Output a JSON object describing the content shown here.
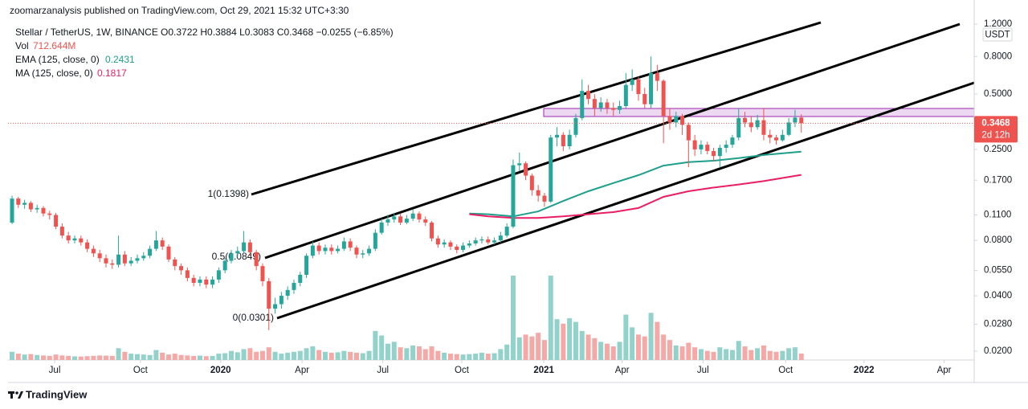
{
  "chart_data": {
    "type": "candlestick",
    "header": {
      "publisher": "zoomarzanalysis published on TradingView.com, Oct 29, 2021 15:32 UTC+3:30",
      "symbol": "Stellar / TetherUS, 1W, BINANCE",
      "ohlc": "O0.3722 H0.3884 L0.3083 C0.3468 −0.0255 (−6.85%)"
    },
    "currency": "USDT",
    "countdown": "2d 12h",
    "footer": "TradingView",
    "log_scale": true,
    "ylim": [
      0.0179,
      1.467
    ],
    "yticks": [
      {
        "value": 1.2,
        "label": "1.2000"
      },
      {
        "value": 0.8,
        "label": "0.8000"
      },
      {
        "value": 0.5,
        "label": "0.5000"
      },
      {
        "value": 0.25,
        "label": "0.2500"
      },
      {
        "value": 0.17,
        "label": "0.1700"
      },
      {
        "value": 0.11,
        "label": "0.1100"
      },
      {
        "value": 0.08,
        "label": "0.0800"
      },
      {
        "value": 0.055,
        "label": "0.0550"
      },
      {
        "value": 0.04,
        "label": "0.0400"
      },
      {
        "value": 0.028,
        "label": "0.0280"
      },
      {
        "value": 0.02,
        "label": "0.0200"
      }
    ],
    "xlim": [
      -0.64,
      153.6
    ],
    "xticks": [
      {
        "value": 6.8,
        "label": "Jul"
      },
      {
        "value": 20.5,
        "label": "Oct"
      },
      {
        "value": 33.3,
        "label": "2020"
      },
      {
        "value": 46.3,
        "label": "Apr"
      },
      {
        "value": 59.2,
        "label": "Jul"
      },
      {
        "value": 71.8,
        "label": "Oct"
      },
      {
        "value": 84.9,
        "label": "2021"
      },
      {
        "value": 97.4,
        "label": "Apr"
      },
      {
        "value": 110.3,
        "label": "Jul"
      },
      {
        "value": 123.5,
        "label": "Oct"
      },
      {
        "value": 136,
        "label": "2022"
      },
      {
        "value": 148.8,
        "label": "Apr"
      }
    ],
    "series": [
      {
        "name": "Stellar / TetherUS",
        "type": "candlestick",
        "up_color": "#26a69a",
        "down_color": "#ef5350",
        "open": [
          0.1,
          0.135,
          0.125,
          0.128,
          0.118,
          0.12,
          0.112,
          0.11,
          0.095,
          0.085,
          0.08,
          0.082,
          0.078,
          0.072,
          0.068,
          0.064,
          0.06,
          0.059,
          0.067,
          0.06,
          0.062,
          0.064,
          0.066,
          0.072,
          0.08,
          0.074,
          0.063,
          0.058,
          0.055,
          0.05,
          0.047,
          0.049,
          0.046,
          0.049,
          0.055,
          0.062,
          0.068,
          0.07,
          0.078,
          0.069,
          0.058,
          0.048,
          0.034,
          0.036,
          0.04,
          0.043,
          0.047,
          0.052,
          0.066,
          0.075,
          0.07,
          0.073,
          0.07,
          0.072,
          0.079,
          0.073,
          0.067,
          0.068,
          0.072,
          0.088,
          0.1,
          0.104,
          0.108,
          0.1,
          0.105,
          0.112,
          0.104,
          0.1,
          0.082,
          0.076,
          0.078,
          0.074,
          0.071,
          0.075,
          0.077,
          0.08,
          0.081,
          0.078,
          0.08,
          0.085,
          0.095,
          0.205,
          0.21,
          0.18,
          0.15,
          0.14,
          0.13,
          0.29,
          0.3,
          0.26,
          0.3,
          0.37,
          0.52,
          0.47,
          0.42,
          0.45,
          0.42,
          0.41,
          0.43,
          0.56,
          0.6,
          0.5,
          0.44,
          0.65,
          0.59,
          0.38,
          0.35,
          0.38,
          0.34,
          0.28,
          0.25,
          0.265,
          0.245,
          0.23,
          0.255,
          0.265,
          0.29,
          0.37,
          0.35,
          0.33,
          0.36,
          0.3,
          0.29,
          0.28,
          0.3,
          0.35,
          0.3722
        ],
        "high": [
          0.14,
          0.138,
          0.133,
          0.131,
          0.125,
          0.123,
          0.116,
          0.113,
          0.099,
          0.089,
          0.085,
          0.085,
          0.081,
          0.075,
          0.071,
          0.067,
          0.063,
          0.085,
          0.07,
          0.065,
          0.067,
          0.069,
          0.075,
          0.09,
          0.083,
          0.076,
          0.065,
          0.06,
          0.057,
          0.052,
          0.051,
          0.051,
          0.051,
          0.057,
          0.064,
          0.071,
          0.074,
          0.09,
          0.081,
          0.071,
          0.06,
          0.05,
          0.039,
          0.042,
          0.045,
          0.049,
          0.054,
          0.068,
          0.079,
          0.078,
          0.076,
          0.076,
          0.075,
          0.083,
          0.082,
          0.075,
          0.071,
          0.075,
          0.092,
          0.105,
          0.11,
          0.113,
          0.112,
          0.11,
          0.118,
          0.115,
          0.108,
          0.102,
          0.085,
          0.081,
          0.08,
          0.076,
          0.078,
          0.08,
          0.083,
          0.084,
          0.084,
          0.083,
          0.089,
          0.099,
          0.22,
          0.24,
          0.215,
          0.185,
          0.16,
          0.145,
          0.3,
          0.33,
          0.31,
          0.32,
          0.39,
          0.6,
          0.56,
          0.5,
          0.48,
          0.47,
          0.45,
          0.46,
          0.65,
          0.68,
          0.62,
          0.54,
          0.8,
          0.72,
          0.6,
          0.42,
          0.4,
          0.39,
          0.35,
          0.3,
          0.28,
          0.275,
          0.255,
          0.265,
          0.28,
          0.3,
          0.42,
          0.4,
          0.38,
          0.385,
          0.42,
          0.32,
          0.3,
          0.32,
          0.37,
          0.41,
          0.3884
        ],
        "low": [
          0.098,
          0.12,
          0.119,
          0.114,
          0.113,
          0.108,
          0.104,
          0.092,
          0.082,
          0.077,
          0.077,
          0.075,
          0.069,
          0.065,
          0.061,
          0.057,
          0.056,
          0.057,
          0.058,
          0.058,
          0.06,
          0.062,
          0.064,
          0.07,
          0.071,
          0.061,
          0.055,
          0.052,
          0.048,
          0.045,
          0.045,
          0.044,
          0.044,
          0.047,
          0.053,
          0.06,
          0.065,
          0.068,
          0.066,
          0.055,
          0.045,
          0.026,
          0.032,
          0.034,
          0.038,
          0.041,
          0.045,
          0.05,
          0.064,
          0.067,
          0.067,
          0.067,
          0.068,
          0.07,
          0.07,
          0.064,
          0.064,
          0.066,
          0.07,
          0.086,
          0.096,
          0.1,
          0.097,
          0.098,
          0.102,
          0.1,
          0.096,
          0.079,
          0.073,
          0.073,
          0.071,
          0.068,
          0.069,
          0.073,
          0.075,
          0.077,
          0.076,
          0.076,
          0.078,
          0.083,
          0.093,
          0.19,
          0.17,
          0.14,
          0.13,
          0.122,
          0.128,
          0.26,
          0.245,
          0.25,
          0.29,
          0.36,
          0.44,
          0.38,
          0.4,
          0.39,
          0.38,
          0.39,
          0.42,
          0.52,
          0.46,
          0.42,
          0.42,
          0.52,
          0.27,
          0.32,
          0.33,
          0.3,
          0.2,
          0.23,
          0.235,
          0.235,
          0.215,
          0.2,
          0.24,
          0.255,
          0.28,
          0.33,
          0.31,
          0.32,
          0.28,
          0.27,
          0.265,
          0.275,
          0.295,
          0.33,
          0.3083
        ],
        "close": [
          0.135,
          0.125,
          0.128,
          0.118,
          0.12,
          0.112,
          0.11,
          0.095,
          0.085,
          0.08,
          0.082,
          0.078,
          0.072,
          0.068,
          0.064,
          0.06,
          0.059,
          0.067,
          0.06,
          0.062,
          0.064,
          0.066,
          0.072,
          0.08,
          0.074,
          0.063,
          0.058,
          0.055,
          0.05,
          0.047,
          0.049,
          0.046,
          0.049,
          0.055,
          0.062,
          0.068,
          0.07,
          0.078,
          0.069,
          0.058,
          0.048,
          0.034,
          0.036,
          0.04,
          0.043,
          0.047,
          0.052,
          0.066,
          0.075,
          0.07,
          0.073,
          0.07,
          0.072,
          0.079,
          0.073,
          0.067,
          0.068,
          0.072,
          0.088,
          0.1,
          0.104,
          0.108,
          0.1,
          0.105,
          0.112,
          0.104,
          0.1,
          0.082,
          0.076,
          0.078,
          0.074,
          0.071,
          0.075,
          0.077,
          0.08,
          0.081,
          0.078,
          0.08,
          0.085,
          0.095,
          0.205,
          0.21,
          0.18,
          0.15,
          0.14,
          0.13,
          0.29,
          0.3,
          0.26,
          0.3,
          0.37,
          0.52,
          0.47,
          0.42,
          0.45,
          0.42,
          0.41,
          0.43,
          0.56,
          0.6,
          0.5,
          0.44,
          0.65,
          0.59,
          0.38,
          0.35,
          0.38,
          0.34,
          0.28,
          0.25,
          0.265,
          0.245,
          0.23,
          0.255,
          0.265,
          0.29,
          0.37,
          0.35,
          0.33,
          0.36,
          0.3,
          0.29,
          0.28,
          0.3,
          0.35,
          0.3722,
          0.3468
        ]
      },
      {
        "name": "Vol",
        "type": "volume",
        "up_color": "#92d2ca",
        "down_color": "#f5a9a6",
        "last_label": "712.644M",
        "values": [
          900,
          700,
          600,
          650,
          550,
          500,
          450,
          600,
          500,
          450,
          400,
          380,
          420,
          450,
          500,
          480,
          450,
          1300,
          900,
          700,
          650,
          600,
          550,
          1100,
          800,
          600,
          700,
          550,
          500,
          450,
          480,
          420,
          450,
          700,
          750,
          1000,
          850,
          1200,
          1300,
          900,
          1000,
          1400,
          900,
          700,
          800,
          900,
          1000,
          1300,
          1500,
          1100,
          900,
          800,
          850,
          1000,
          900,
          800,
          750,
          1000,
          3200,
          2700,
          1800,
          2000,
          1400,
          1300,
          1600,
          1500,
          1200,
          1500,
          1000,
          800,
          700,
          650,
          600,
          650,
          700,
          800,
          700,
          750,
          1200,
          1700,
          9300,
          2500,
          2800,
          2600,
          3000,
          2200,
          9300,
          4500,
          4000,
          4600,
          4200,
          3200,
          2800,
          2400,
          2000,
          1800,
          1500,
          2000,
          5000,
          3600,
          2800,
          2600,
          5200,
          4200,
          2800,
          2200,
          1600,
          1500,
          1900,
          1400,
          1200,
          1000,
          900,
          1400,
          1200,
          1100,
          2100,
          1500,
          1100,
          1300,
          1600,
          1000,
          900,
          1000,
          1300,
          1400,
          712.644
        ]
      },
      {
        "name": "EMA (125, close, 0)",
        "type": "line",
        "color": "#1e9e8c",
        "x": [
          73,
          76,
          80,
          84,
          88,
          92,
          96,
          100,
          104,
          108,
          112,
          116,
          120,
          126
        ],
        "values": [
          0.112,
          0.111,
          0.108,
          0.115,
          0.131,
          0.148,
          0.164,
          0.181,
          0.204,
          0.213,
          0.217,
          0.224,
          0.233,
          0.2431
        ]
      },
      {
        "name": "MA (125, close, 0)",
        "type": "line",
        "color": "#e91e63",
        "x": [
          73,
          76,
          80,
          84,
          88,
          92,
          96,
          100,
          104,
          108,
          112,
          116,
          120,
          126
        ],
        "values": [
          0.111,
          0.108,
          0.106,
          0.106,
          0.108,
          0.111,
          0.114,
          0.12,
          0.138,
          0.148,
          0.155,
          0.161,
          0.168,
          0.1817
        ]
      }
    ],
    "channel": [
      {
        "label": "1(0.1398)"
      },
      {
        "label": "0.5(0.0849)"
      },
      {
        "label": "0(0.0301)"
      }
    ]
  }
}
